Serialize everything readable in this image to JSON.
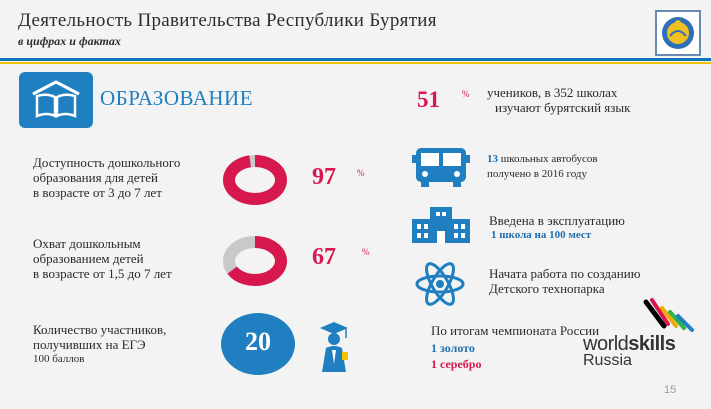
{
  "header": {
    "title": "Деятельность Правительства Республики Бурятия",
    "subtitle": "в цифрах и фактах"
  },
  "section": {
    "title": "ОБРАЗОВАНИЕ",
    "icon": "book-icon"
  },
  "left": {
    "preschool_access": {
      "label_lines": [
        "Доступность дошкольного",
        "образования для детей",
        "в возрасте от 3 до 7 лет"
      ],
      "value": "97",
      "unit": "%",
      "fraction": 0.97
    },
    "preschool_coverage": {
      "label_lines": [
        "Охват дошкольным",
        "образованием детей",
        "в возрасте от 1,5 до 7 лет"
      ],
      "value": "67",
      "unit": "%",
      "fraction": 0.67
    },
    "exam": {
      "label_lines": [
        "Количество участников,",
        "получивших на ЕГЭ",
        "100 баллов"
      ],
      "value": "20",
      "icon": "graduate-icon"
    }
  },
  "right": {
    "buryat_language": {
      "value": "51",
      "unit": "%",
      "line1": "учеников, в 352 школах",
      "line2": "изучают бурятский язык"
    },
    "buses": {
      "icon": "bus-icon",
      "line1_num": "13",
      "line1_text": " школьных автобусов",
      "line2": "получено в 2016 году"
    },
    "school": {
      "icon": "school-building-icon",
      "line1": "Введена в эксплуатацию",
      "line2": "1 школа на 100 мест"
    },
    "technopark": {
      "icon": "atom-icon",
      "line1": "Начата работа по созданию",
      "line2": "Детского технопарка"
    },
    "championship": {
      "line1": "По итогам чемпионата России",
      "gold": "1 золото",
      "silver": "1 серебро",
      "logo_world": "world",
      "logo_skills": "skills",
      "logo_russia": "Russia"
    }
  },
  "page_number": "15",
  "colors": {
    "accent_blue": "#1f7fc0",
    "accent_red": "#d6184f",
    "donut_gray": "#c9c9c9"
  }
}
